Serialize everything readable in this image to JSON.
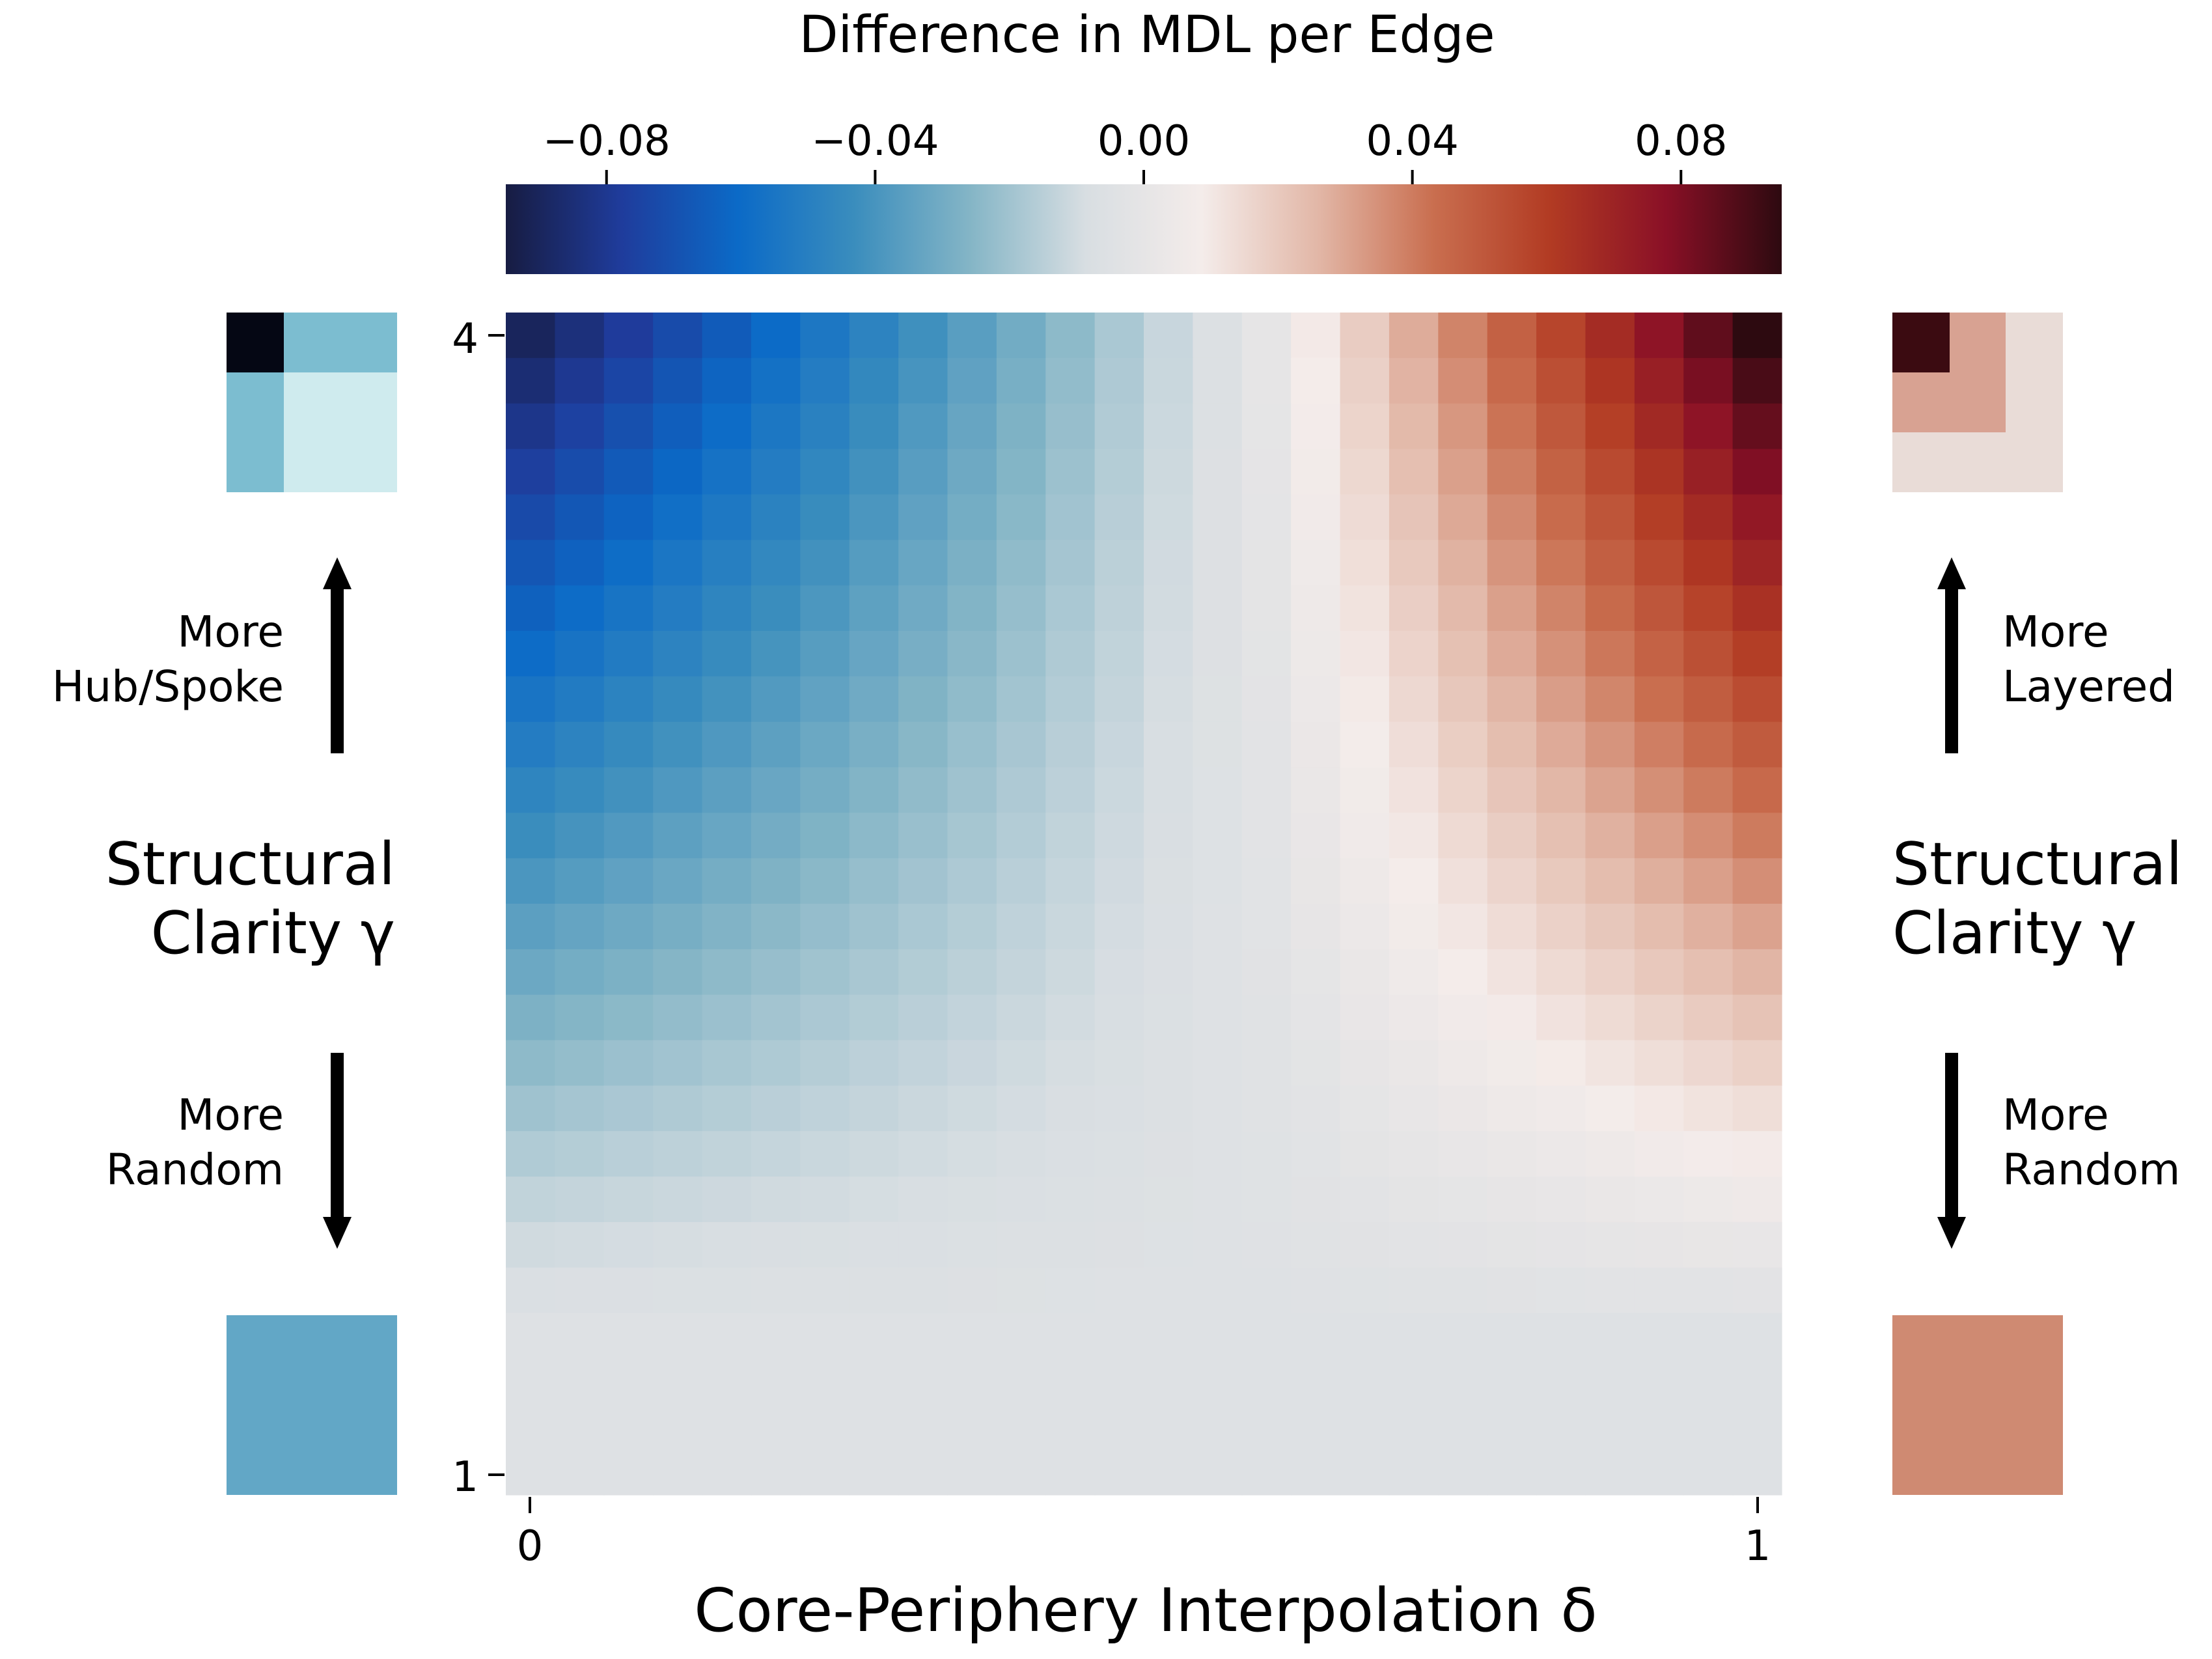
{
  "chart_data": {
    "type": "heatmap",
    "title": "Difference in MDL per Edge",
    "xlabel": "Core-Periphery Interpolation δ",
    "ylabel": "Structural Clarity γ",
    "x_ticks": [
      "0",
      "1"
    ],
    "y_ticks": [
      "4",
      "1"
    ],
    "xlim": [
      0,
      1
    ],
    "ylim": [
      1,
      4
    ],
    "n_cols": 26,
    "n_rows": 26,
    "colorbar": {
      "label": "Difference in MDL per Edge",
      "range": [
        -0.095,
        0.095
      ],
      "ticks": [
        "−0.08",
        "−0.04",
        "0.00",
        "0.04",
        "0.08"
      ],
      "tick_values": [
        -0.08,
        -0.04,
        0.0,
        0.04,
        0.08
      ],
      "colors": [
        "#171c42",
        "#1f3c9c",
        "#0b6ac7",
        "#3a8dbd",
        "#84b5c6",
        "#d8dee2",
        "#f4ecea",
        "#e2b7a7",
        "#c96e4f",
        "#b23b23",
        "#8a1026",
        "#2d0a10"
      ]
    },
    "surface_model": {
      "description": "values[row][col], row 0 = top (γ=4), col 0 = δ=0",
      "left_edge_top": -0.09,
      "right_edge_top": 0.095,
      "balance_column_fraction": 0.6
    }
  },
  "left_panel": {
    "arrow_up_label": [
      "More",
      "Hub/Spoke"
    ],
    "axis_label": [
      "Structural",
      "Clarity γ"
    ],
    "arrow_down_label": [
      "More",
      "Random"
    ],
    "matrix_top_colors": [
      "#050714",
      "#7cbdd0",
      "#7cbdd0",
      "#cfebee"
    ],
    "matrix_bottom_color": "#62a7c6"
  },
  "right_panel": {
    "arrow_up_label": [
      "More",
      "Layered"
    ],
    "axis_label": [
      "Structural",
      "Clarity γ"
    ],
    "arrow_down_label": [
      "More",
      "Random"
    ],
    "matrix_top_colors": [
      "#3b0b11",
      "#d8a292",
      "#e9dcd7"
    ],
    "matrix_bottom_color": "#cf8a72"
  }
}
